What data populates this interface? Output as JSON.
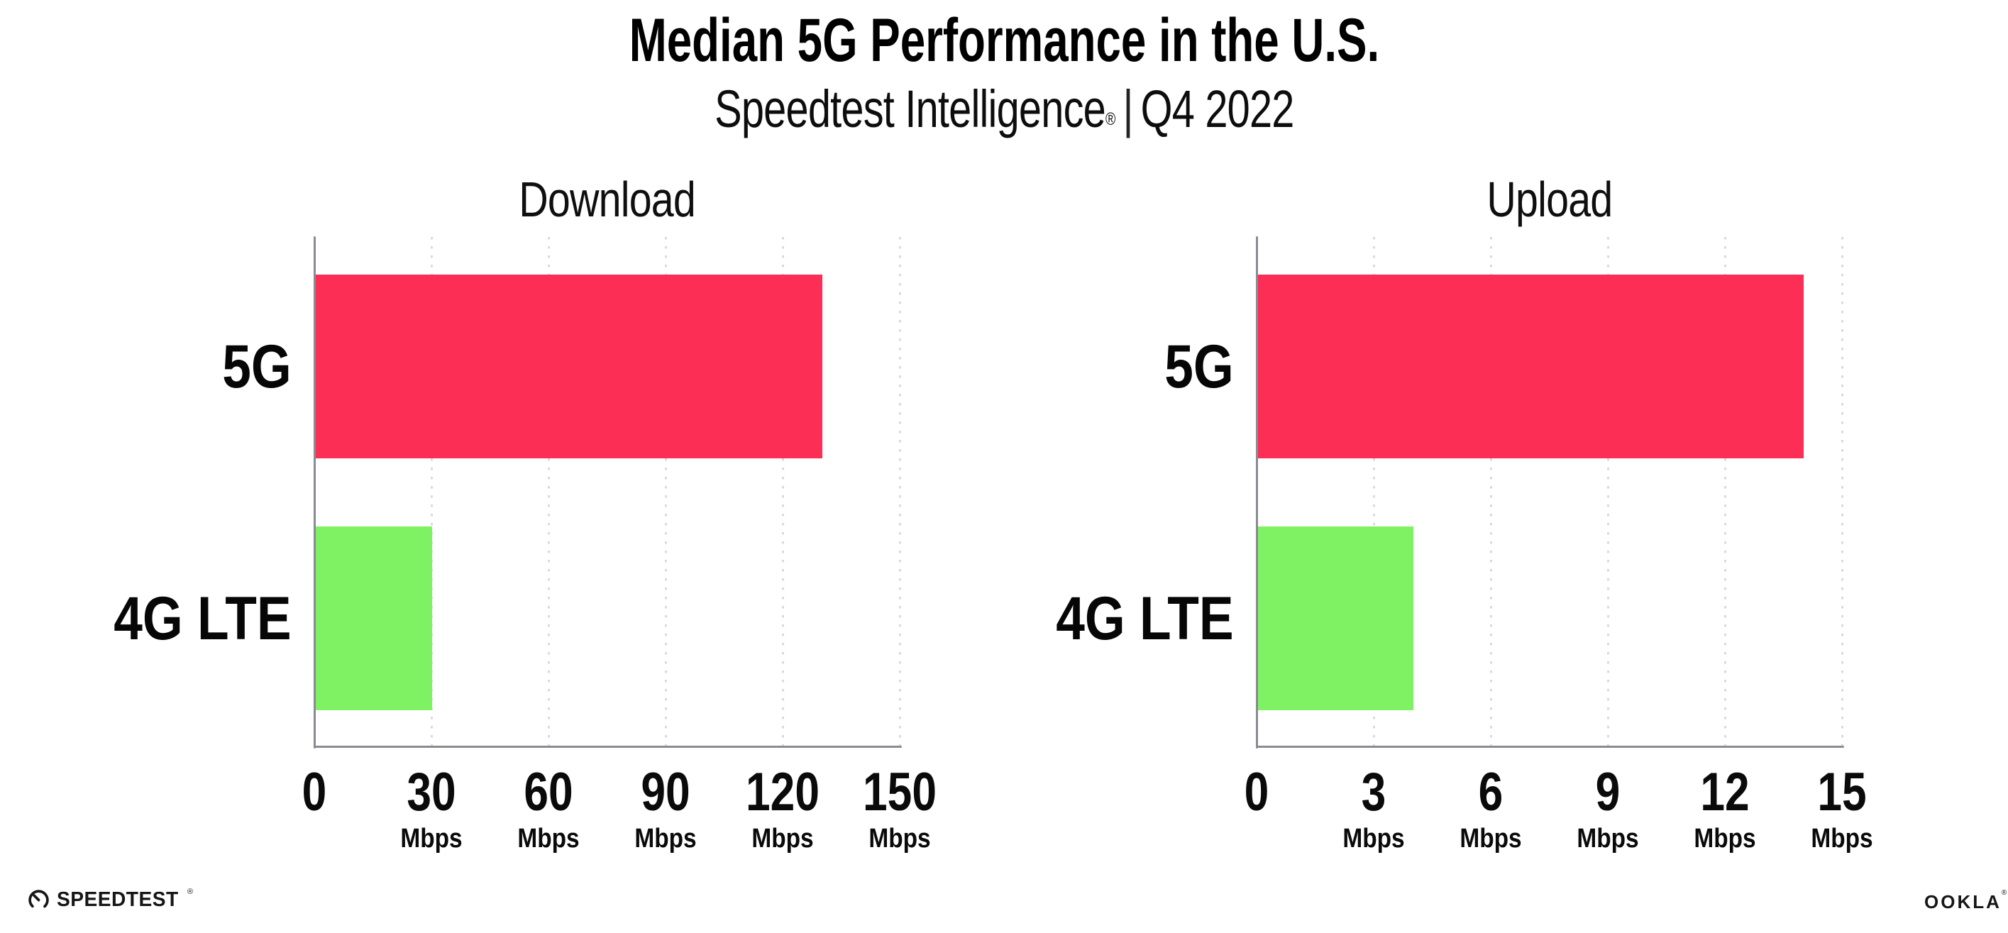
{
  "header": {
    "title": "Median 5G Performance in the U.S.",
    "subtitle": {
      "product": "Speedtest Intelligence",
      "trademark": "®",
      "separator": "|",
      "period": "Q4 2022"
    }
  },
  "chart_data": [
    {
      "type": "bar",
      "orientation": "horizontal",
      "title": "Download",
      "categories": [
        "5G",
        "4G LTE"
      ],
      "values": [
        130,
        30
      ],
      "unit": "Mbps",
      "xlim": [
        0,
        150
      ],
      "xticks": [
        0,
        30,
        60,
        90,
        120,
        150
      ],
      "bar_colors": [
        "#fc2e56",
        "#7ef263"
      ],
      "grid": "dotted vertical gridlines at each tick",
      "legend": "none"
    },
    {
      "type": "bar",
      "orientation": "horizontal",
      "title": "Upload",
      "categories": [
        "5G",
        "4G LTE"
      ],
      "values": [
        14,
        4
      ],
      "unit": "Mbps",
      "xlim": [
        0,
        15
      ],
      "xticks": [
        0,
        3,
        6,
        9,
        12,
        15
      ],
      "bar_colors": [
        "#fc2e56",
        "#7ef263"
      ],
      "grid": "dotted vertical gridlines at each tick",
      "legend": "none"
    }
  ],
  "footer": {
    "speedtest_wordmark": "SPEEDTEST",
    "speedtest_trademark": "®",
    "ookla_wordmark": "OOKLA",
    "ookla_trademark": "®"
  },
  "colors": {
    "bar_5g": "#fc2e56",
    "bar_4g_lte": "#7ef263",
    "axis": "#8a8a92",
    "gridline_dots": "#d9d9e3",
    "text": "#0d0d0d",
    "background": "#ffffff"
  }
}
